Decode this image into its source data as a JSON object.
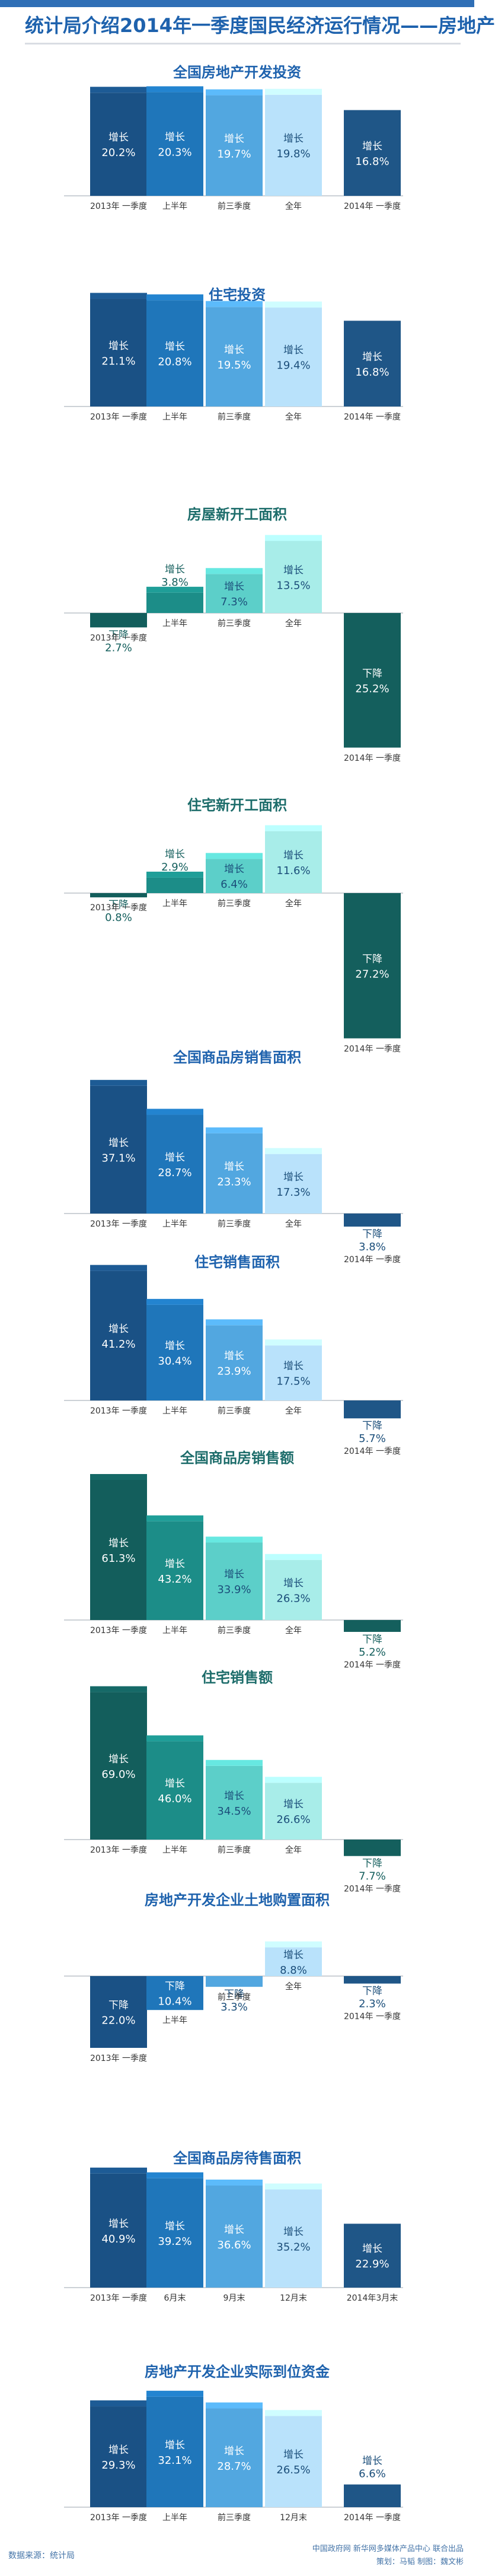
{
  "page": {
    "title": "统计局介绍2014年一季度国民经济运行情况——房地产",
    "source": "数据来源：统计局",
    "credit_line1": "中国政府网 新华网多媒体产品中心 联合出品",
    "credit_line2": "策划：马韬  制图：魏文彬"
  },
  "chart_data": [
    {
      "type": "bar",
      "title": "全国房地产开发投资",
      "categories": [
        "2013年 一季度",
        "上半年",
        "前三季度",
        "全年",
        "2014年 一季度"
      ],
      "values": [
        20.2,
        20.3,
        19.7,
        19.8,
        16.8
      ],
      "labels": [
        "增长",
        "增长",
        "增长",
        "增长",
        "增长"
      ]
    },
    {
      "type": "bar",
      "title": "住宅投资",
      "categories": [
        "2013年 一季度",
        "上半年",
        "前三季度",
        "全年",
        "2014年 一季度"
      ],
      "values": [
        21.1,
        20.8,
        19.5,
        19.4,
        16.8
      ],
      "labels": [
        "增长",
        "增长",
        "增长",
        "增长",
        "增长"
      ]
    },
    {
      "type": "bar",
      "title": "房屋新开工面积",
      "categories": [
        "2013年 一季度",
        "上半年",
        "前三季度",
        "全年",
        "2014年 一季度"
      ],
      "values": [
        -2.7,
        3.8,
        7.3,
        13.5,
        -25.2
      ],
      "labels": [
        "下降",
        "增长",
        "增长",
        "增长",
        "下降"
      ]
    },
    {
      "type": "bar",
      "title": "住宅新开工面积",
      "categories": [
        "2013年 一季度",
        "上半年",
        "前三季度",
        "全年",
        "2014年 一季度"
      ],
      "values": [
        -0.8,
        2.9,
        6.4,
        11.6,
        -27.2
      ],
      "labels": [
        "下降",
        "增长",
        "增长",
        "增长",
        "下降"
      ]
    },
    {
      "type": "bar",
      "title": "全国商品房销售面积",
      "categories": [
        "2013年 一季度",
        "上半年",
        "前三季度",
        "全年",
        "2014年 一季度"
      ],
      "values": [
        37.1,
        28.7,
        23.3,
        17.3,
        -3.8
      ],
      "labels": [
        "增长",
        "增长",
        "增长",
        "增长",
        "下降"
      ]
    },
    {
      "type": "bar",
      "title": "住宅销售面积",
      "categories": [
        "2013年 一季度",
        "上半年",
        "前三季度",
        "全年",
        "2014年 一季度"
      ],
      "values": [
        41.2,
        30.4,
        23.9,
        17.5,
        -5.7
      ],
      "labels": [
        "增长",
        "增长",
        "增长",
        "增长",
        "下降"
      ]
    },
    {
      "type": "bar",
      "title": "全国商品房销售额",
      "categories": [
        "2013年 一季度",
        "上半年",
        "前三季度",
        "全年",
        "2014年 一季度"
      ],
      "values": [
        61.3,
        43.2,
        33.9,
        26.3,
        -5.2
      ],
      "labels": [
        "增长",
        "增长",
        "增长",
        "增长",
        "下降"
      ]
    },
    {
      "type": "bar",
      "title": "住宅销售额",
      "categories": [
        "2013年 一季度",
        "上半年",
        "前三季度",
        "全年",
        "2014年 一季度"
      ],
      "values": [
        69.0,
        46.0,
        34.5,
        26.6,
        -7.7
      ],
      "labels": [
        "增长",
        "增长",
        "增长",
        "增长",
        "下降"
      ]
    },
    {
      "type": "bar",
      "title": "房地产开发企业土地购置面积",
      "categories": [
        "2013年 一季度",
        "上半年",
        "前三季度",
        "全年",
        "2014年 一季度"
      ],
      "values": [
        -22.0,
        -10.4,
        -3.3,
        8.8,
        -2.3
      ],
      "labels": [
        "下降",
        "下降",
        "下降",
        "增长",
        "下降"
      ]
    },
    {
      "type": "bar",
      "title": "全国商品房待售面积",
      "categories": [
        "2013年 一季度",
        "6月末",
        "9月末",
        "12月末",
        "2014年3月末"
      ],
      "values": [
        40.9,
        39.2,
        36.6,
        35.2,
        22.9
      ],
      "labels": [
        "增长",
        "增长",
        "增长",
        "增长",
        "增长"
      ]
    },
    {
      "type": "bar",
      "title": "房地产开发企业实际到位资金",
      "categories": [
        "2013年 一季度",
        "上半年",
        "前三季度",
        "12月末",
        "2014年 一季度"
      ],
      "values": [
        29.3,
        32.1,
        28.7,
        26.5,
        6.6
      ],
      "labels": [
        "增长",
        "增长",
        "增长",
        "增长",
        "增长"
      ]
    }
  ],
  "colors": {
    "blue_series": [
      "#1a5185",
      "#1f76ba",
      "#52a7e0",
      "#b9e2fb",
      "#1f5687"
    ],
    "teal_series": [
      "#135e5c",
      "#1c8d88",
      "#5ccfc9",
      "#a8ede9",
      "#145f5d"
    ],
    "title_blue": "#1e62ad",
    "title_teal": "#1c6c6a"
  }
}
